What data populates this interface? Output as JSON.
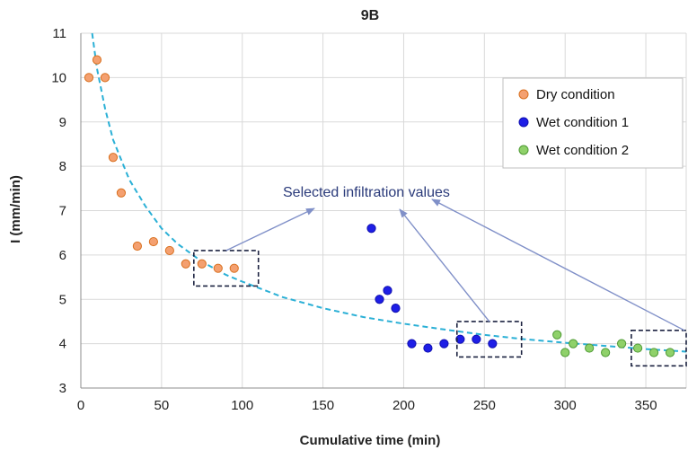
{
  "chart_data": {
    "type": "scatter",
    "title": "9B",
    "xlabel": "Cumulative time (min)",
    "ylabel": "I (mm/min)",
    "xlim": [
      0,
      375
    ],
    "ylim": [
      3,
      11
    ],
    "xticks": [
      0,
      50,
      100,
      150,
      200,
      250,
      300,
      350
    ],
    "yticks": [
      3,
      4,
      5,
      6,
      7,
      8,
      9,
      10,
      11
    ],
    "grid": true,
    "legend_position": "top-right",
    "series": [
      {
        "name": "Dry condition",
        "color": "#f4a070",
        "stroke": "#d9701f",
        "points": [
          [
            5,
            10.0
          ],
          [
            10,
            10.4
          ],
          [
            15,
            10.0
          ],
          [
            20,
            8.2
          ],
          [
            25,
            7.4
          ],
          [
            35,
            6.2
          ],
          [
            45,
            6.3
          ],
          [
            55,
            6.1
          ],
          [
            65,
            5.8
          ],
          [
            75,
            5.8
          ],
          [
            85,
            5.7
          ],
          [
            95,
            5.7
          ]
        ]
      },
      {
        "name": "Wet condition 1",
        "color": "#1e1ee6",
        "stroke": "#1010b0",
        "points": [
          [
            180,
            6.6
          ],
          [
            185,
            5.0
          ],
          [
            190,
            5.2
          ],
          [
            195,
            4.8
          ],
          [
            205,
            4.0
          ],
          [
            215,
            3.9
          ],
          [
            225,
            4.0
          ],
          [
            235,
            4.1
          ],
          [
            245,
            4.1
          ],
          [
            255,
            4.0
          ]
        ]
      },
      {
        "name": "Wet condition 2",
        "color": "#8fd16a",
        "stroke": "#4f9a35",
        "points": [
          [
            295,
            4.2
          ],
          [
            300,
            3.8
          ],
          [
            305,
            4.0
          ],
          [
            315,
            3.9
          ],
          [
            325,
            3.8
          ],
          [
            335,
            4.0
          ],
          [
            345,
            3.9
          ],
          [
            355,
            3.8
          ],
          [
            365,
            3.8
          ]
        ]
      }
    ],
    "trendline": {
      "style": "dashed",
      "color": "#2bb0d6",
      "curve": [
        [
          7,
          11.0
        ],
        [
          10,
          10.2
        ],
        [
          15,
          9.3
        ],
        [
          20,
          8.6
        ],
        [
          30,
          7.7
        ],
        [
          40,
          7.1
        ],
        [
          50,
          6.6
        ],
        [
          60,
          6.25
        ],
        [
          75,
          5.85
        ],
        [
          90,
          5.55
        ],
        [
          100,
          5.4
        ],
        [
          125,
          5.05
        ],
        [
          150,
          4.8
        ],
        [
          175,
          4.6
        ],
        [
          200,
          4.45
        ],
        [
          225,
          4.32
        ],
        [
          250,
          4.2
        ],
        [
          275,
          4.1
        ],
        [
          300,
          4.02
        ],
        [
          325,
          3.95
        ],
        [
          350,
          3.88
        ],
        [
          375,
          3.82
        ]
      ]
    },
    "annotation": {
      "text": "Selected infiltration values",
      "boxes": [
        [
          70,
          110,
          5.3,
          6.1
        ],
        [
          233,
          273,
          3.7,
          4.5
        ],
        [
          341,
          375,
          3.5,
          4.3
        ]
      ]
    }
  }
}
